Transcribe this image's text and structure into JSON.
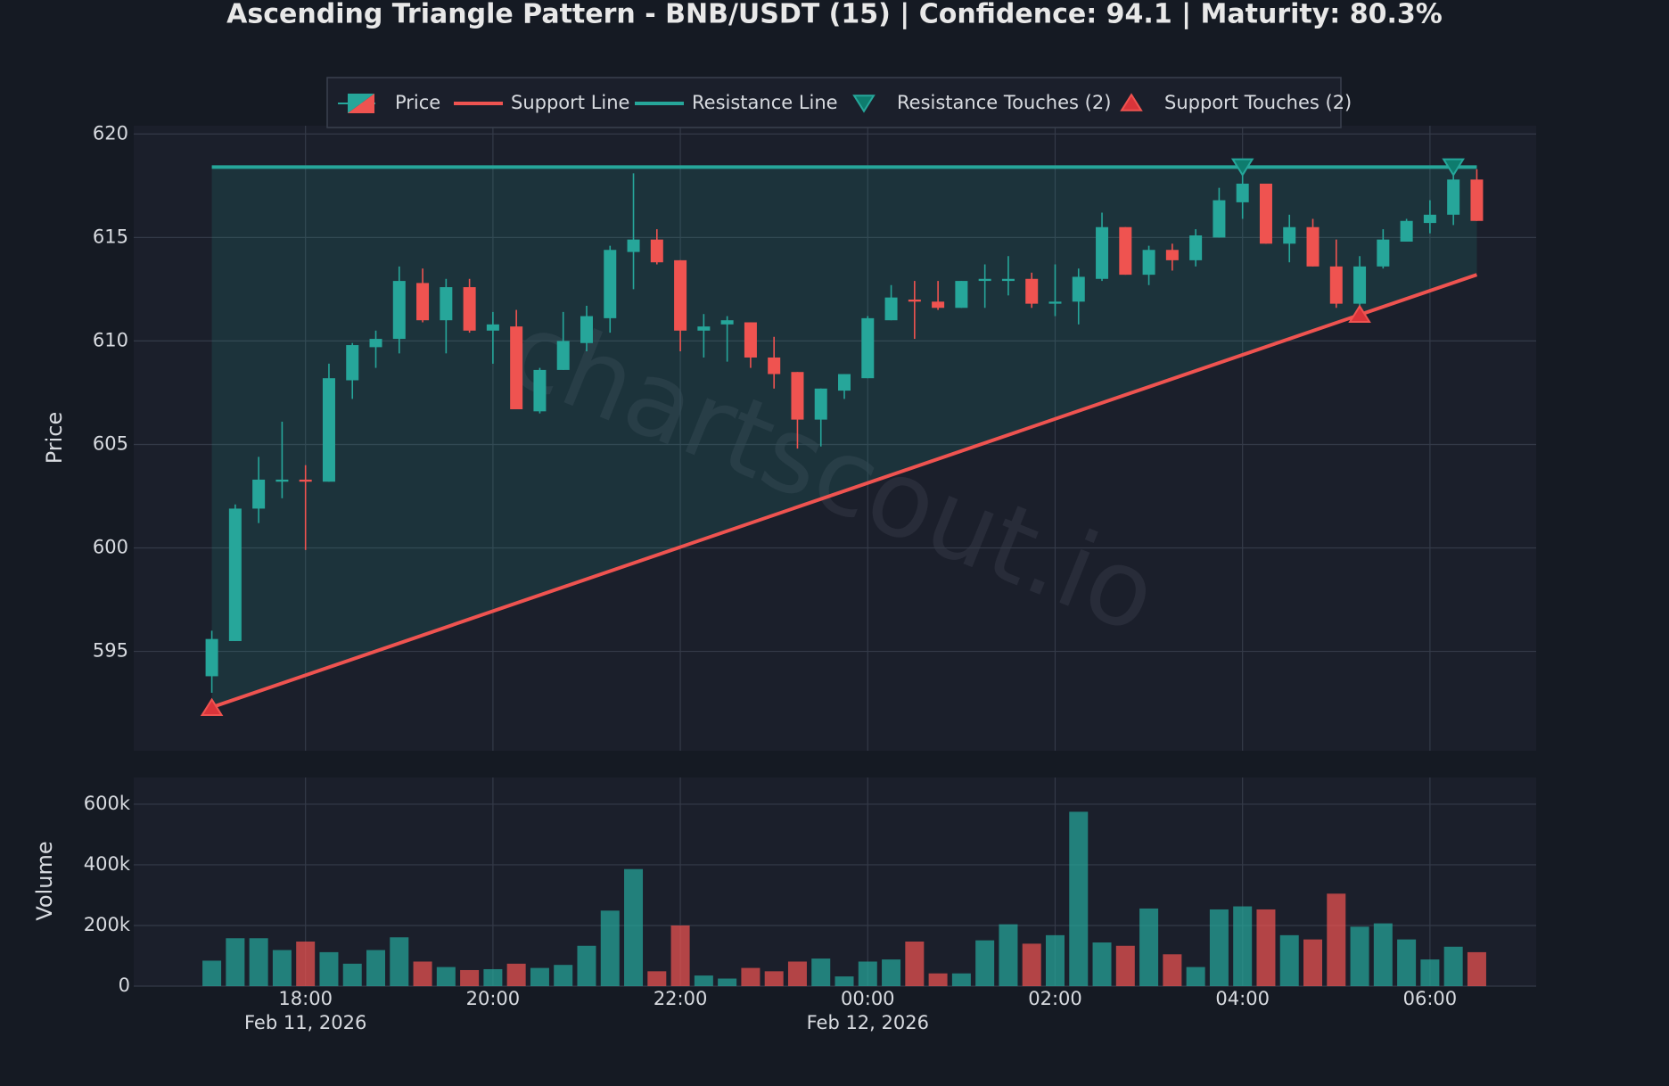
{
  "chart_data": {
    "type": "candlestick",
    "title": "Ascending Triangle Pattern - BNB/USDT (15) | Confidence: 94.1 | Maturity: 80.3%",
    "watermark": "chartscout.io",
    "y_label": "Price",
    "volume_label": "Volume",
    "up_color": "#26a69a",
    "down_color": "#ef5350",
    "grid": true,
    "legend": "top",
    "candles": {
      "name": "Price",
      "x": [
        "2026-02-11T17:00",
        "2026-02-11T17:15",
        "2026-02-11T17:30",
        "2026-02-11T17:45",
        "2026-02-11T18:00",
        "2026-02-11T18:15",
        "2026-02-11T18:30",
        "2026-02-11T18:45",
        "2026-02-11T19:00",
        "2026-02-11T19:15",
        "2026-02-11T19:30",
        "2026-02-11T19:45",
        "2026-02-11T20:00",
        "2026-02-11T20:15",
        "2026-02-11T20:30",
        "2026-02-11T20:45",
        "2026-02-11T21:00",
        "2026-02-11T21:15",
        "2026-02-11T21:30",
        "2026-02-11T21:45",
        "2026-02-11T22:00",
        "2026-02-11T22:15",
        "2026-02-11T22:30",
        "2026-02-11T22:45",
        "2026-02-11T23:00",
        "2026-02-11T23:15",
        "2026-02-11T23:30",
        "2026-02-11T23:45",
        "2026-02-12T00:00",
        "2026-02-12T00:15",
        "2026-02-12T00:30",
        "2026-02-12T00:45",
        "2026-02-12T01:00",
        "2026-02-12T01:15",
        "2026-02-12T01:30",
        "2026-02-12T01:45",
        "2026-02-12T02:00",
        "2026-02-12T02:15",
        "2026-02-12T02:30",
        "2026-02-12T02:45",
        "2026-02-12T03:00",
        "2026-02-12T03:15",
        "2026-02-12T03:30",
        "2026-02-12T03:45",
        "2026-02-12T04:00",
        "2026-02-12T04:15",
        "2026-02-12T04:30",
        "2026-02-12T04:45",
        "2026-02-12T05:00",
        "2026-02-12T05:15",
        "2026-02-12T05:30",
        "2026-02-12T05:45",
        "2026-02-12T06:00",
        "2026-02-12T06:15",
        "2026-02-12T06:30"
      ],
      "open": [
        593.8,
        595.5,
        601.9,
        603.2,
        603.3,
        603.2,
        608.1,
        609.7,
        610.1,
        612.8,
        611.0,
        612.6,
        610.5,
        610.7,
        606.6,
        608.6,
        609.9,
        611.1,
        614.3,
        614.9,
        613.9,
        610.5,
        610.8,
        610.9,
        609.2,
        608.5,
        606.2,
        607.6,
        608.2,
        611.0,
        612.0,
        611.9,
        611.6,
        612.9,
        612.9,
        613.0,
        611.8,
        611.9,
        613.0,
        615.5,
        613.2,
        614.4,
        613.9,
        615.0,
        616.7,
        617.6,
        614.7,
        615.5,
        613.6,
        611.8,
        613.6,
        614.8,
        615.7,
        616.1,
        617.8
      ],
      "high": [
        596.0,
        602.1,
        604.4,
        606.1,
        604.0,
        608.9,
        609.9,
        610.5,
        613.6,
        613.5,
        613.0,
        613.0,
        611.4,
        611.5,
        608.7,
        611.4,
        611.7,
        614.6,
        618.1,
        615.4,
        613.9,
        611.3,
        611.2,
        610.9,
        610.2,
        608.5,
        607.7,
        608.4,
        611.2,
        612.7,
        612.9,
        612.9,
        612.9,
        613.7,
        614.1,
        613.3,
        613.7,
        613.5,
        616.2,
        615.5,
        614.6,
        614.7,
        615.4,
        617.4,
        618.3,
        617.6,
        616.1,
        615.9,
        614.9,
        614.1,
        615.4,
        615.9,
        616.8,
        618.3,
        618.3
      ],
      "low": [
        593.0,
        595.5,
        601.2,
        602.4,
        599.9,
        603.2,
        607.2,
        608.7,
        609.4,
        610.9,
        609.4,
        610.4,
        608.9,
        606.7,
        606.5,
        608.6,
        609.5,
        610.4,
        612.5,
        613.7,
        609.5,
        609.2,
        609.0,
        608.7,
        607.7,
        604.8,
        604.9,
        607.2,
        608.2,
        611.0,
        610.1,
        611.5,
        611.6,
        611.6,
        612.2,
        611.6,
        611.2,
        610.8,
        612.9,
        613.2,
        612.7,
        613.4,
        613.6,
        615.0,
        615.9,
        614.7,
        613.8,
        613.6,
        611.6,
        611.6,
        613.5,
        614.8,
        615.2,
        615.6,
        615.8
      ],
      "close": [
        595.6,
        601.9,
        603.3,
        603.3,
        603.2,
        608.2,
        609.8,
        610.1,
        612.9,
        611.0,
        612.6,
        610.5,
        610.8,
        606.7,
        608.6,
        610.0,
        611.2,
        614.4,
        614.9,
        613.8,
        610.5,
        610.7,
        611.0,
        609.2,
        608.4,
        606.2,
        607.7,
        608.4,
        611.1,
        612.1,
        611.9,
        611.6,
        612.9,
        613.0,
        613.0,
        611.8,
        611.9,
        613.1,
        615.5,
        613.2,
        614.4,
        613.9,
        615.1,
        616.8,
        617.6,
        614.7,
        615.5,
        613.6,
        611.8,
        613.6,
        614.9,
        615.8,
        616.1,
        617.8,
        615.8
      ],
      "volume": [
        84000,
        158000,
        158000,
        119000,
        147000,
        112000,
        74000,
        119000,
        161000,
        81000,
        63000,
        53000,
        56000,
        74000,
        60000,
        70000,
        133000,
        249000,
        386000,
        49000,
        200000,
        35000,
        25000,
        60000,
        49000,
        81000,
        91000,
        32000,
        81000,
        88000,
        147000,
        42000,
        42000,
        151000,
        204000,
        140000,
        168000,
        575000,
        144000,
        133000,
        256000,
        105000,
        63000,
        253000,
        263000,
        253000,
        168000,
        154000,
        305000,
        196000,
        207000,
        154000,
        88000,
        130000,
        112000
      ]
    },
    "support_line": {
      "name": "Support Line",
      "color": "#ef5350",
      "x": [
        "2026-02-11T17:00",
        "2026-02-12T06:30"
      ],
      "values": [
        592.3,
        613.2
      ]
    },
    "resistance_line": {
      "name": "Resistance Line",
      "color": "#26a69a",
      "x": [
        "2026-02-11T17:00",
        "2026-02-12T06:30"
      ],
      "values": [
        618.4,
        618.4
      ]
    },
    "resistance_touches": {
      "name": "Resistance Touches (2)",
      "color": "#0e7c6e",
      "x": [
        "2026-02-12T04:00",
        "2026-02-12T06:15"
      ],
      "values": [
        618.4,
        618.4
      ]
    },
    "support_touches": {
      "name": "Support Touches (2)",
      "color": "#d9343a",
      "x": [
        "2026-02-11T17:00",
        "2026-02-12T05:15"
      ],
      "values": [
        592.3,
        611.3
      ]
    },
    "xlim": [
      "2026-02-11T16:10",
      "2026-02-12T07:08"
    ],
    "xticks": [
      {
        "value": "2026-02-11T18:00",
        "label": "18:00",
        "sublabel": "Feb 11, 2026"
      },
      {
        "value": "2026-02-11T20:00",
        "label": "20:00"
      },
      {
        "value": "2026-02-11T22:00",
        "label": "22:00"
      },
      {
        "value": "2026-02-12T00:00",
        "label": "00:00",
        "sublabel": "Feb 12, 2026"
      },
      {
        "value": "2026-02-12T02:00",
        "label": "02:00"
      },
      {
        "value": "2026-02-12T04:00",
        "label": "04:00"
      },
      {
        "value": "2026-02-12T06:00",
        "label": "06:00"
      }
    ],
    "ylim": [
      590.2,
      620.4
    ],
    "yticks": [
      595,
      600,
      605,
      610,
      615,
      620
    ],
    "volume_ylim": [
      0,
      688000
    ],
    "volume_yticks": [
      0,
      {
        "value": 200000,
        "label": "200k"
      },
      {
        "value": 400000,
        "label": "400k"
      },
      {
        "value": 600000,
        "label": "600k"
      }
    ]
  }
}
